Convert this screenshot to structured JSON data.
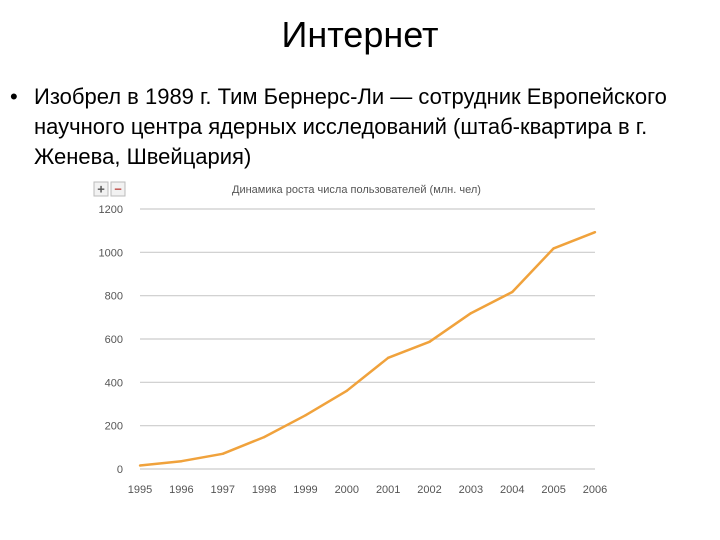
{
  "slide": {
    "title": "Интернет",
    "bullet_marker": "•",
    "bullet_text": "Изобрел в 1989 г. Тим Бернерс-Ли — сотрудник Европейского научного центра ядерных исследований (штаб-квартира в г. Женева, Швейцария)"
  },
  "chart_controls": {
    "zoom_in_label": "+",
    "zoom_out_label": "−"
  },
  "colors": {
    "line": "#f0a23c",
    "grid": "#cccccc",
    "axis_text": "#555555",
    "title_text": "#555555"
  },
  "chart_data": {
    "type": "line",
    "title": "Динамика роста числа пользователей (млн. чел)",
    "categories": [
      "1995",
      "1996",
      "1997",
      "1998",
      "1999",
      "2000",
      "2001",
      "2002",
      "2003",
      "2004",
      "2005",
      "2006"
    ],
    "series": [
      {
        "values": [
          16,
          36,
          70,
          147,
          248,
          361,
          513,
          587,
          719,
          817,
          1018,
          1093
        ]
      }
    ],
    "yticks": [
      "0",
      "200",
      "400",
      "600",
      "800",
      "1000",
      "1200"
    ],
    "ylim": [
      0,
      1200
    ],
    "grid": true,
    "legend": "none"
  }
}
